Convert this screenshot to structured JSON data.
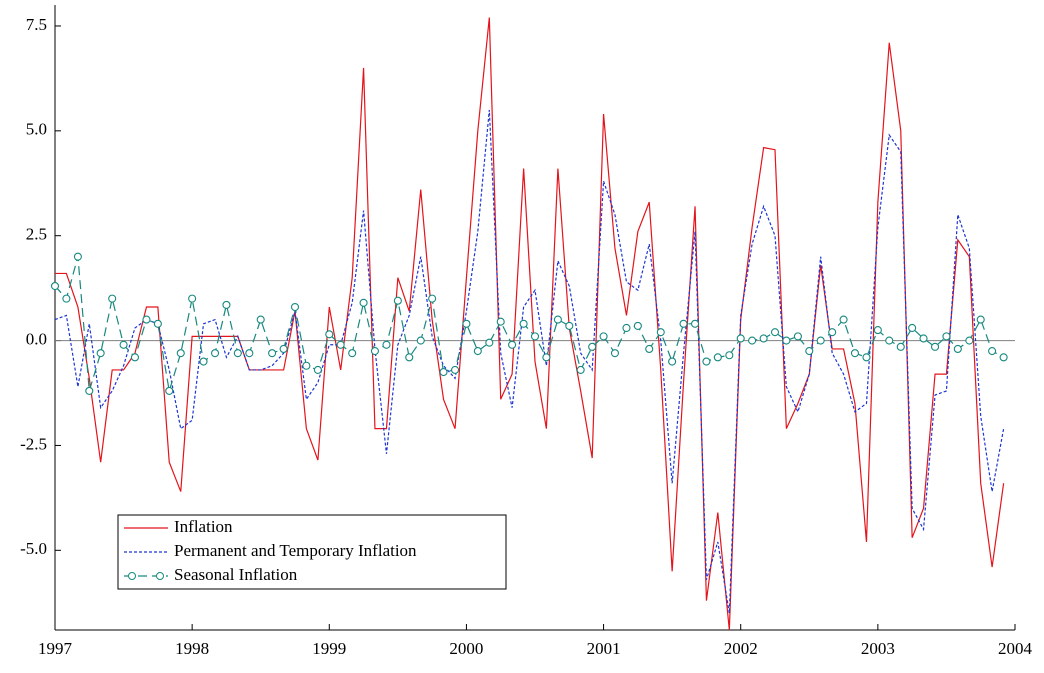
{
  "chart_data": {
    "type": "line",
    "x": [
      1997.0,
      1997.083,
      1997.167,
      1997.25,
      1997.333,
      1997.417,
      1997.5,
      1997.583,
      1997.667,
      1997.75,
      1997.833,
      1997.917,
      1998.0,
      1998.083,
      1998.167,
      1998.25,
      1998.333,
      1998.417,
      1998.5,
      1998.583,
      1998.667,
      1998.75,
      1998.833,
      1998.917,
      1999.0,
      1999.083,
      1999.167,
      1999.25,
      1999.333,
      1999.417,
      1999.5,
      1999.583,
      1999.667,
      1999.75,
      1999.833,
      1999.917,
      2000.0,
      2000.083,
      2000.167,
      2000.25,
      2000.333,
      2000.417,
      2000.5,
      2000.583,
      2000.667,
      2000.75,
      2000.833,
      2000.917,
      2001.0,
      2001.083,
      2001.167,
      2001.25,
      2001.333,
      2001.417,
      2001.5,
      2001.583,
      2001.667,
      2001.75,
      2001.833,
      2001.917,
      2002.0,
      2002.083,
      2002.167,
      2002.25,
      2002.333,
      2002.417,
      2002.5,
      2002.583,
      2002.667,
      2002.75,
      2002.833,
      2002.917,
      2003.0,
      2003.083,
      2003.167,
      2003.25,
      2003.333,
      2003.417,
      2003.5,
      2003.583,
      2003.667,
      2003.75,
      2003.833,
      2003.917
    ],
    "series": [
      {
        "name": "Inflation",
        "color": "#e3141b",
        "line_style": "solid",
        "marker": "none",
        "values": [
          1.6,
          1.6,
          0.8,
          -0.9,
          -2.9,
          -0.7,
          -0.7,
          -0.3,
          0.8,
          0.8,
          -2.9,
          -3.6,
          0.1,
          0.1,
          0.1,
          0.1,
          0.1,
          -0.7,
          -0.7,
          -0.7,
          -0.7,
          0.7,
          -2.1,
          -2.85,
          0.8,
          -0.7,
          1.5,
          6.5,
          -2.1,
          -2.1,
          1.5,
          0.7,
          3.6,
          0.5,
          -1.4,
          -2.1,
          1.5,
          5.0,
          7.7,
          -1.4,
          -0.8,
          4.1,
          -0.5,
          -2.1,
          4.1,
          0.3,
          -1.2,
          -2.8,
          5.4,
          2.2,
          0.6,
          2.6,
          3.3,
          -0.7,
          -5.5,
          -1.0,
          3.2,
          -6.2,
          -4.1,
          -6.9,
          0.5,
          2.7,
          4.6,
          4.55,
          -2.1,
          -1.5,
          -0.8,
          1.8,
          -0.2,
          -0.2,
          -1.5,
          -4.8,
          3.3,
          7.1,
          5.0,
          -4.7,
          -4.0,
          -0.8,
          -0.8,
          2.4,
          2.0,
          -3.4,
          -5.4,
          -3.4
        ]
      },
      {
        "name": "Permanent and Temporary Inflation",
        "color": "#1c35d4",
        "line_style": "dotted",
        "marker": "none",
        "values": [
          0.5,
          0.6,
          -1.1,
          0.4,
          -1.6,
          -1.2,
          -0.6,
          0.3,
          0.5,
          0.4,
          -0.7,
          -2.1,
          -1.9,
          0.4,
          0.5,
          -0.4,
          0.1,
          -0.7,
          -0.7,
          -0.6,
          -0.3,
          0.7,
          -1.4,
          -1.0,
          -0.1,
          -0.1,
          0.9,
          3.1,
          -0.2,
          -2.7,
          -0.1,
          0.6,
          2.0,
          0.1,
          -0.6,
          -0.9,
          0.7,
          2.6,
          5.5,
          -0.3,
          -1.6,
          0.8,
          1.2,
          -0.6,
          1.9,
          1.3,
          -0.3,
          -0.7,
          3.8,
          3.0,
          1.4,
          1.2,
          2.3,
          0.0,
          -3.4,
          -0.3,
          2.6,
          -5.7,
          -4.8,
          -6.5,
          0.6,
          2.3,
          3.2,
          2.5,
          -1.1,
          -1.7,
          -0.8,
          2.0,
          -0.3,
          -0.8,
          -1.7,
          -1.5,
          2.7,
          4.9,
          4.5,
          -4.0,
          -4.5,
          -1.3,
          -1.2,
          3.0,
          2.2,
          -1.8,
          -3.6,
          -2.1
        ]
      },
      {
        "name": "Seasonal Inflation",
        "color": "#17897f",
        "line_style": "dashed",
        "marker": "circle",
        "values": [
          1.3,
          1.0,
          2.0,
          -1.2,
          -0.3,
          1.0,
          -0.1,
          -0.4,
          0.5,
          0.4,
          -1.2,
          -0.3,
          1.0,
          -0.5,
          -0.3,
          0.85,
          -0.3,
          -0.3,
          0.5,
          -0.3,
          -0.2,
          0.8,
          -0.6,
          -0.7,
          0.15,
          -0.1,
          -0.3,
          0.9,
          -0.25,
          -0.1,
          0.95,
          -0.4,
          0.0,
          1.0,
          -0.75,
          -0.7,
          0.4,
          -0.25,
          -0.05,
          0.45,
          -0.1,
          0.4,
          0.1,
          -0.4,
          0.5,
          0.35,
          -0.7,
          -0.15,
          0.1,
          -0.3,
          0.3,
          0.35,
          -0.2,
          0.2,
          -0.5,
          0.4,
          0.4,
          -0.5,
          -0.4,
          -0.35,
          0.05,
          0.0,
          0.05,
          0.2,
          0.0,
          0.1,
          -0.25,
          0.0,
          0.2,
          0.5,
          -0.3,
          -0.4,
          0.25,
          0.0,
          -0.15,
          0.3,
          0.05,
          -0.15,
          0.1,
          -0.2,
          0.0,
          0.5,
          -0.25,
          -0.4
        ]
      }
    ],
    "xlim": [
      1997,
      2004
    ],
    "xticks": [
      1997,
      1998,
      1999,
      2000,
      2001,
      2002,
      2003,
      2004
    ],
    "ylim": [
      -6.9,
      8.0
    ],
    "yticks": [
      {
        "value": -5,
        "label": "-5.0"
      },
      -2.5,
      {
        "value": 0,
        "label": "0.0"
      },
      2.5,
      {
        "value": 5,
        "label": "5.0"
      },
      7.5
    ],
    "zero_line": true,
    "legend": "lower left"
  }
}
